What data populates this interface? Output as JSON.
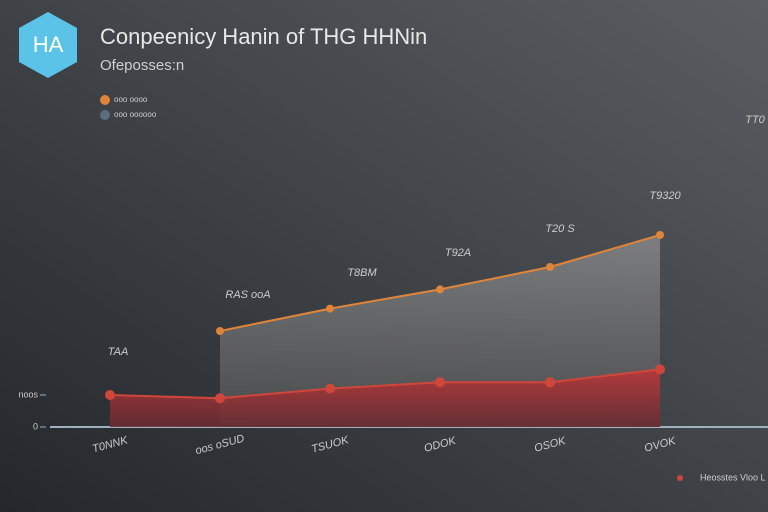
{
  "logo": "HA",
  "chart_data": {
    "type": "area",
    "title": "Conpeenicy Hanin of THG HHNin",
    "subtitle": "Ofeposses:n",
    "categories": [
      "T0NNK",
      "oos oSUD",
      "TSUOK",
      "ODOK",
      "OSOK",
      "OVOK"
    ],
    "series": [
      {
        "name": "ooo oooo",
        "color": "#e0843a",
        "values": [
          null,
          30,
          37,
          43,
          50,
          60
        ]
      },
      {
        "name": "ooo oooooo",
        "color": "#d0463a",
        "values": [
          10,
          9,
          12,
          14,
          14,
          18
        ]
      }
    ],
    "annotations": [
      "TAA",
      "RAS ooA",
      "T8BM",
      "T92A",
      "T20 S",
      "T9320",
      "TT0"
    ],
    "note": "Heosstes Vloo L",
    "ylim": [
      0,
      100
    ],
    "yticks": [
      0,
      {
        "value": 10,
        "label": "noos"
      }
    ]
  }
}
